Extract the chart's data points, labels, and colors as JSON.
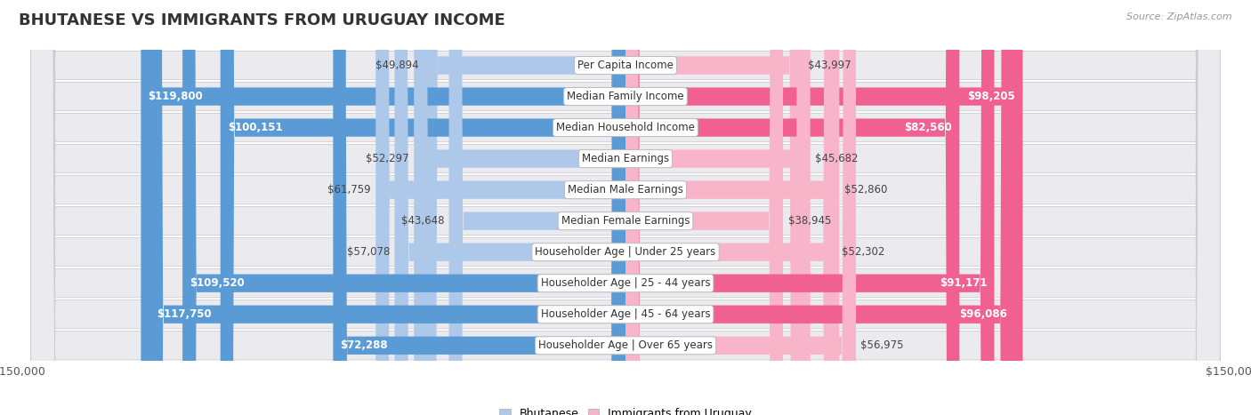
{
  "title": "BHUTANESE VS IMMIGRANTS FROM URUGUAY INCOME",
  "source": "Source: ZipAtlas.com",
  "categories": [
    "Per Capita Income",
    "Median Family Income",
    "Median Household Income",
    "Median Earnings",
    "Median Male Earnings",
    "Median Female Earnings",
    "Householder Age | Under 25 years",
    "Householder Age | 25 - 44 years",
    "Householder Age | 45 - 64 years",
    "Householder Age | Over 65 years"
  ],
  "bhutanese_values": [
    49894,
    119800,
    100151,
    52297,
    61759,
    43648,
    57078,
    109520,
    117750,
    72288
  ],
  "uruguay_values": [
    43997,
    98205,
    82560,
    45682,
    52860,
    38945,
    52302,
    91171,
    96086,
    56975
  ],
  "max_value": 150000,
  "blue_light": "#adc8e8",
  "blue_solid": "#5b9bd5",
  "pink_light": "#f8b4c8",
  "pink_solid": "#f06090",
  "blue_label": "Bhutanese",
  "pink_label": "Immigrants from Uruguay",
  "row_bg": "#e8e8ec",
  "row_border": "#cccccc",
  "label_fontsize": 8.5,
  "value_fontsize": 8.5,
  "title_fontsize": 13,
  "blue_threshold": 70000,
  "pink_threshold": 65000
}
